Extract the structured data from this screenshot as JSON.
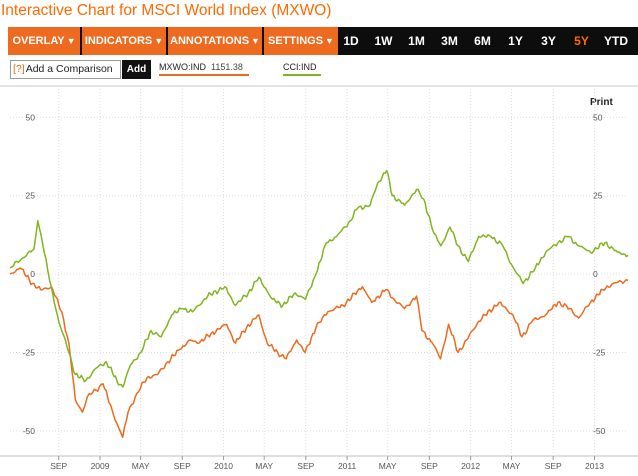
{
  "header": {
    "title": "Interactive Chart for MSCI World Index (MXWO)"
  },
  "toolbar": {
    "menus": [
      {
        "label": "OVERLAY",
        "arrow": "▼"
      },
      {
        "label": "INDICATORS",
        "arrow": "▼"
      },
      {
        "label": "ANNOTATIONS",
        "arrow": "▼"
      },
      {
        "label": "SETTINGS",
        "arrow": "▼"
      }
    ],
    "ranges": [
      "1D",
      "1W",
      "1M",
      "3M",
      "6M",
      "1Y",
      "3Y",
      "5Y",
      "YTD"
    ],
    "active_range": "5Y"
  },
  "compare": {
    "help_glyph": "[?]",
    "placeholder": "Add a Comparison",
    "add_label": "Add"
  },
  "legend": {
    "items": [
      {
        "name": "MXWO:IND",
        "value": "1151.38",
        "color": "#ee6a1e"
      },
      {
        "name": "CCI:IND",
        "value": "",
        "color": "#7fb61f"
      }
    ]
  },
  "print_label": "Print",
  "chart_data": {
    "type": "line",
    "title": "",
    "xlabel": "",
    "ylabel": "",
    "ylim": [
      -58,
      60
    ],
    "y_ticks": [
      "50",
      "25",
      "0",
      "-25",
      "-50"
    ],
    "y_tick_values": [
      50,
      25,
      0,
      -25,
      -50
    ],
    "grid": true,
    "x_tick_labels": [
      "SEP",
      "2009",
      "MAY",
      "SEP",
      "2010",
      "MAY",
      "SEP",
      "2011",
      "MAY",
      "SEP",
      "2012",
      "MAY",
      "SEP",
      "2013"
    ],
    "x_tick_dates": [
      "2008-09-01",
      "2009-01-01",
      "2009-05-01",
      "2009-09-01",
      "2010-01-01",
      "2010-05-01",
      "2010-09-01",
      "2011-01-01",
      "2011-05-01",
      "2011-09-01",
      "2012-01-01",
      "2012-05-01",
      "2012-09-01",
      "2013-01-01"
    ],
    "x_range": [
      "2008-04-10",
      "2013-04-10"
    ],
    "series": [
      {
        "name": "MXWO:IND",
        "color": "#ee6a1e",
        "points": [
          [
            "2008-04-10",
            0
          ],
          [
            "2008-05-10",
            2
          ],
          [
            "2008-06-15",
            -3
          ],
          [
            "2008-07-10",
            -5
          ],
          [
            "2008-08-10",
            -4
          ],
          [
            "2008-09-10",
            -12
          ],
          [
            "2008-10-01",
            -22
          ],
          [
            "2008-10-20",
            -40
          ],
          [
            "2008-11-10",
            -44
          ],
          [
            "2008-11-25",
            -39
          ],
          [
            "2008-12-20",
            -37
          ],
          [
            "2009-01-10",
            -35
          ],
          [
            "2009-02-10",
            -45
          ],
          [
            "2009-03-09",
            -52
          ],
          [
            "2009-03-25",
            -44
          ],
          [
            "2009-04-20",
            -38
          ],
          [
            "2009-05-20",
            -33
          ],
          [
            "2009-06-20",
            -32
          ],
          [
            "2009-07-20",
            -28
          ],
          [
            "2009-08-25",
            -24
          ],
          [
            "2009-09-25",
            -21
          ],
          [
            "2009-10-20",
            -22
          ],
          [
            "2009-11-25",
            -19
          ],
          [
            "2010-01-10",
            -16
          ],
          [
            "2010-02-05",
            -22
          ],
          [
            "2010-03-10",
            -17
          ],
          [
            "2010-04-15",
            -13
          ],
          [
            "2010-05-10",
            -22
          ],
          [
            "2010-06-10",
            -25
          ],
          [
            "2010-07-05",
            -27
          ],
          [
            "2010-08-05",
            -21
          ],
          [
            "2010-08-30",
            -25
          ],
          [
            "2010-10-01",
            -17
          ],
          [
            "2010-11-05",
            -12
          ],
          [
            "2010-12-20",
            -10
          ],
          [
            "2011-02-15",
            -4
          ],
          [
            "2011-03-15",
            -9
          ],
          [
            "2011-04-25",
            -5
          ],
          [
            "2011-05-20",
            -8
          ],
          [
            "2011-06-20",
            -11
          ],
          [
            "2011-07-25",
            -7
          ],
          [
            "2011-08-10",
            -18
          ],
          [
            "2011-09-10",
            -22
          ],
          [
            "2011-10-04",
            -27
          ],
          [
            "2011-10-28",
            -16
          ],
          [
            "2011-11-25",
            -25
          ],
          [
            "2011-12-20",
            -21
          ],
          [
            "2012-01-25",
            -15
          ],
          [
            "2012-03-25",
            -9
          ],
          [
            "2012-05-05",
            -13
          ],
          [
            "2012-06-01",
            -20
          ],
          [
            "2012-07-01",
            -15
          ],
          [
            "2012-08-10",
            -13
          ],
          [
            "2012-09-15",
            -9
          ],
          [
            "2012-10-20",
            -11
          ],
          [
            "2012-11-15",
            -14
          ],
          [
            "2012-12-20",
            -9
          ],
          [
            "2013-01-25",
            -5
          ],
          [
            "2013-02-25",
            -3
          ],
          [
            "2013-04-10",
            -2
          ]
        ]
      },
      {
        "name": "CCI:IND",
        "color": "#7fb61f",
        "points": [
          [
            "2008-04-10",
            2
          ],
          [
            "2008-05-15",
            5
          ],
          [
            "2008-06-20",
            8
          ],
          [
            "2008-07-01",
            17
          ],
          [
            "2008-07-15",
            10
          ],
          [
            "2008-08-05",
            -2
          ],
          [
            "2008-09-01",
            -15
          ],
          [
            "2008-10-01",
            -25
          ],
          [
            "2008-10-20",
            -32
          ],
          [
            "2008-11-20",
            -34
          ],
          [
            "2008-12-20",
            -30
          ],
          [
            "2009-01-20",
            -28
          ],
          [
            "2009-02-20",
            -34
          ],
          [
            "2009-03-09",
            -36
          ],
          [
            "2009-04-01",
            -29
          ],
          [
            "2009-05-01",
            -25
          ],
          [
            "2009-06-01",
            -18
          ],
          [
            "2009-07-01",
            -20
          ],
          [
            "2009-08-01",
            -13
          ],
          [
            "2009-09-01",
            -11
          ],
          [
            "2009-10-01",
            -12
          ],
          [
            "2009-11-15",
            -7
          ],
          [
            "2010-01-05",
            -4
          ],
          [
            "2010-02-05",
            -10
          ],
          [
            "2010-03-15",
            -6
          ],
          [
            "2010-04-15",
            -1
          ],
          [
            "2010-05-25",
            -8
          ],
          [
            "2010-06-25",
            -10
          ],
          [
            "2010-08-01",
            -6
          ],
          [
            "2010-08-31",
            -8
          ],
          [
            "2010-10-01",
            0
          ],
          [
            "2010-11-01",
            10
          ],
          [
            "2010-12-01",
            12
          ],
          [
            "2011-01-10",
            17
          ],
          [
            "2011-02-01",
            21
          ],
          [
            "2011-03-10",
            22
          ],
          [
            "2011-04-01",
            29
          ],
          [
            "2011-04-28",
            33
          ],
          [
            "2011-05-15",
            25
          ],
          [
            "2011-06-20",
            22
          ],
          [
            "2011-07-25",
            27
          ],
          [
            "2011-08-15",
            24
          ],
          [
            "2011-09-15",
            13
          ],
          [
            "2011-10-05",
            9
          ],
          [
            "2011-11-01",
            15
          ],
          [
            "2011-11-25",
            9
          ],
          [
            "2011-12-25",
            4
          ],
          [
            "2012-01-25",
            12
          ],
          [
            "2012-03-01",
            12
          ],
          [
            "2012-04-05",
            9
          ],
          [
            "2012-05-01",
            3
          ],
          [
            "2012-06-04",
            -3
          ],
          [
            "2012-07-10",
            2
          ],
          [
            "2012-08-10",
            7
          ],
          [
            "2012-09-15",
            10
          ],
          [
            "2012-10-15",
            12
          ],
          [
            "2012-11-15",
            9
          ],
          [
            "2012-12-20",
            7
          ],
          [
            "2013-02-01",
            10
          ],
          [
            "2013-03-10",
            7
          ],
          [
            "2013-04-10",
            6
          ]
        ]
      }
    ]
  }
}
